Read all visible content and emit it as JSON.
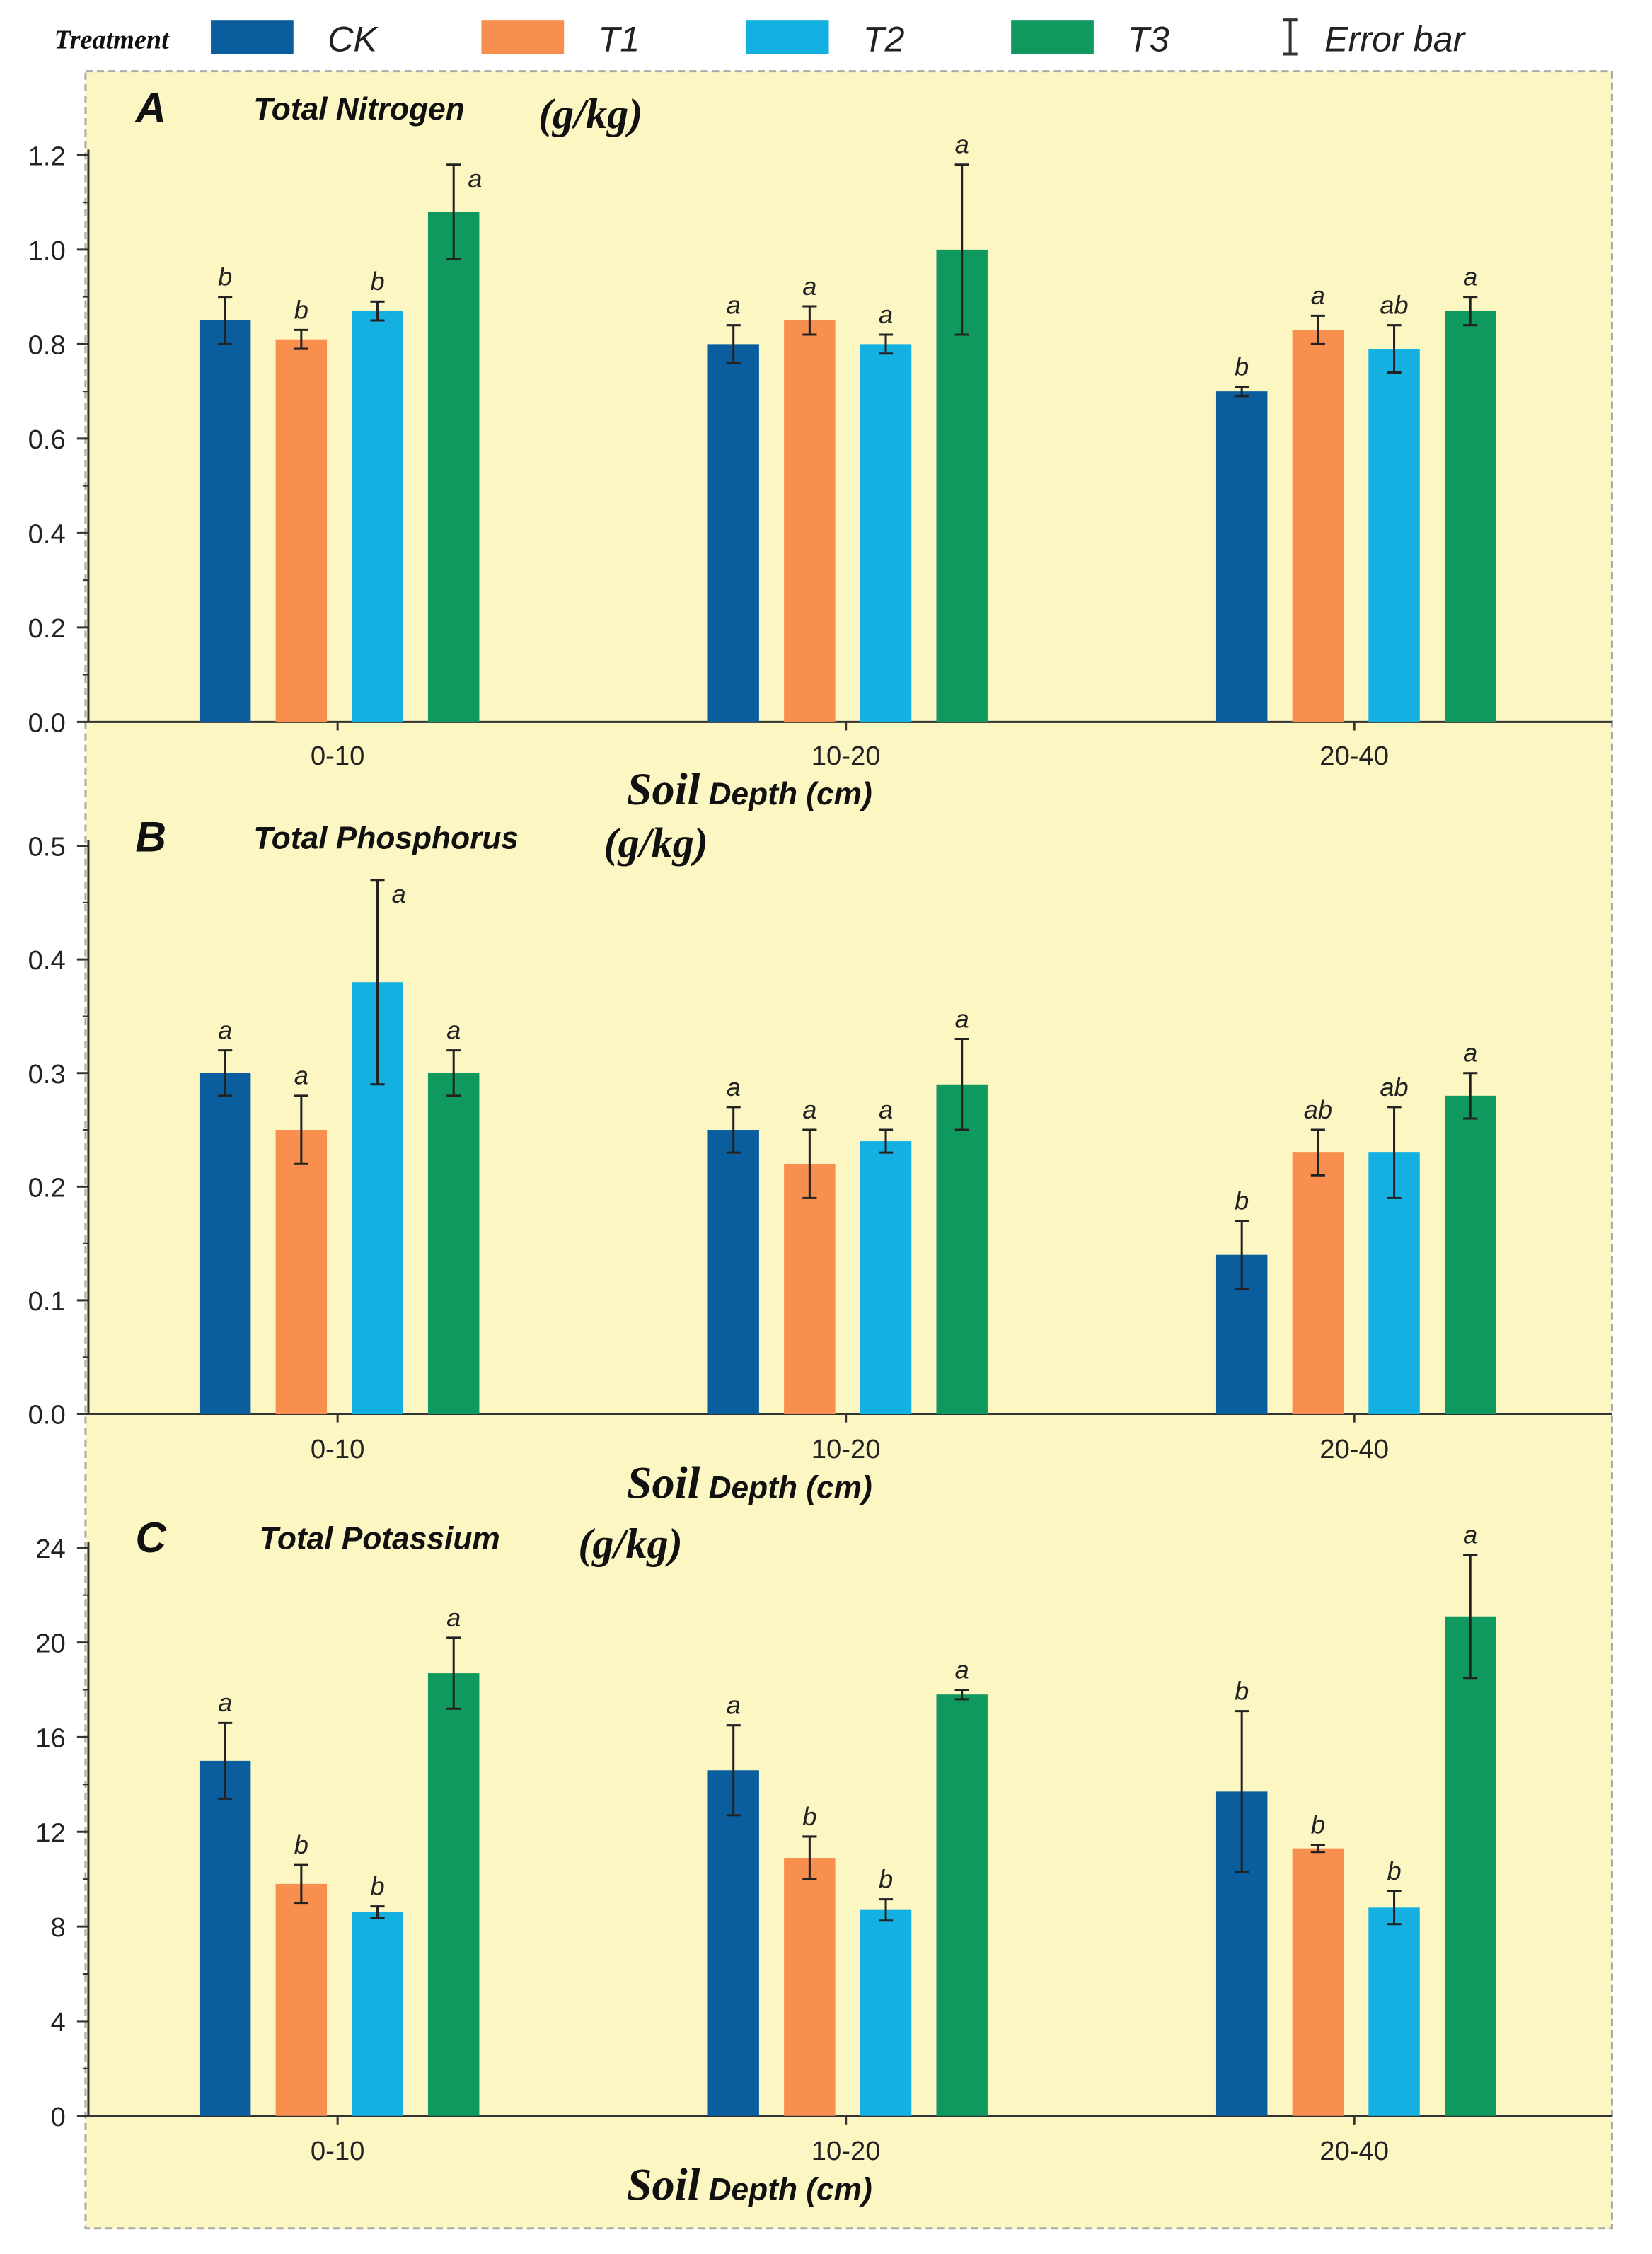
{
  "legend": {
    "title": "Treatment",
    "items": [
      {
        "label": "CK",
        "color": "#0b5e9d"
      },
      {
        "label": "T1",
        "color": "#f88f4e"
      },
      {
        "label": "T2",
        "color": "#14b0e2"
      },
      {
        "label": "T3",
        "color": "#10995f"
      }
    ],
    "error_label": "Error bar"
  },
  "background_color": "#fcf6c2",
  "chart_data": [
    {
      "type": "bar",
      "panel": "A",
      "title": "Total Nitrogen",
      "unit": "(g/kg)",
      "xlabel_main": "Soil",
      "xlabel_rest": "Depth (cm)",
      "categories": [
        "0-10",
        "10-20",
        "20-40"
      ],
      "ylim": [
        0,
        1.2
      ],
      "yticks": [
        "0.0",
        "0.2",
        "0.4",
        "0.6",
        "0.8",
        "1.0",
        "1.2"
      ],
      "ytick_values": [
        0,
        0.2,
        0.4,
        0.6,
        0.8,
        1.0,
        1.2
      ],
      "series": [
        {
          "name": "CK",
          "values": [
            0.85,
            0.8,
            0.7
          ],
          "errors": [
            0.05,
            0.04,
            0.01
          ],
          "letters": [
            "b",
            "a",
            "b"
          ]
        },
        {
          "name": "T1",
          "values": [
            0.81,
            0.85,
            0.83
          ],
          "errors": [
            0.02,
            0.03,
            0.03
          ],
          "letters": [
            "b",
            "a",
            "a"
          ]
        },
        {
          "name": "T2",
          "values": [
            0.87,
            0.8,
            0.79
          ],
          "errors": [
            0.02,
            0.02,
            0.05
          ],
          "letters": [
            "b",
            "a",
            "ab"
          ]
        },
        {
          "name": "T3",
          "values": [
            1.08,
            1.0,
            0.87
          ],
          "errors": [
            0.1,
            0.18,
            0.03
          ],
          "letters": [
            "a",
            "a",
            "a"
          ]
        }
      ]
    },
    {
      "type": "bar",
      "panel": "B",
      "title": "Total Phosphorus",
      "unit": "(g/kg)",
      "xlabel_main": "Soil",
      "xlabel_rest": "Depth (cm)",
      "categories": [
        "0-10",
        "10-20",
        "20-40"
      ],
      "ylim": [
        0,
        0.5
      ],
      "yticks": [
        "0.0",
        "0.1",
        "0.2",
        "0.3",
        "0.4",
        "0.5"
      ],
      "ytick_values": [
        0,
        0.1,
        0.2,
        0.3,
        0.4,
        0.5
      ],
      "series": [
        {
          "name": "CK",
          "values": [
            0.3,
            0.25,
            0.14
          ],
          "errors": [
            0.02,
            0.02,
            0.03
          ],
          "letters": [
            "a",
            "a",
            "b"
          ]
        },
        {
          "name": "T1",
          "values": [
            0.25,
            0.22,
            0.23
          ],
          "errors": [
            0.03,
            0.03,
            0.02
          ],
          "letters": [
            "a",
            "a",
            "ab"
          ]
        },
        {
          "name": "T2",
          "values": [
            0.38,
            0.24,
            0.23
          ],
          "errors": [
            0.09,
            0.01,
            0.04
          ],
          "letters": [
            "a",
            "a",
            "ab"
          ]
        },
        {
          "name": "T3",
          "values": [
            0.3,
            0.29,
            0.28
          ],
          "errors": [
            0.02,
            0.04,
            0.02
          ],
          "letters": [
            "a",
            "a",
            "a"
          ]
        }
      ]
    },
    {
      "type": "bar",
      "panel": "C",
      "title": "Total Potassium",
      "unit": "(g/kg)",
      "xlabel_main": "Soil",
      "xlabel_rest": "Depth (cm)",
      "categories": [
        "0-10",
        "10-20",
        "20-40"
      ],
      "ylim": [
        0,
        24
      ],
      "yticks": [
        "0",
        "4",
        "8",
        "12",
        "16",
        "20",
        "24"
      ],
      "ytick_values": [
        0,
        4,
        8,
        12,
        16,
        20,
        24
      ],
      "series": [
        {
          "name": "CK",
          "values": [
            15.0,
            14.6,
            13.7
          ],
          "errors": [
            1.6,
            1.9,
            3.4
          ],
          "letters": [
            "a",
            "a",
            "b"
          ]
        },
        {
          "name": "T1",
          "values": [
            9.8,
            10.9,
            11.3
          ],
          "errors": [
            0.8,
            0.9,
            0.15
          ],
          "letters": [
            "b",
            "b",
            "b"
          ]
        },
        {
          "name": "T2",
          "values": [
            8.6,
            8.7,
            8.8
          ],
          "errors": [
            0.25,
            0.45,
            0.7
          ],
          "letters": [
            "b",
            "b",
            "b"
          ]
        },
        {
          "name": "T3",
          "values": [
            18.7,
            17.8,
            21.1
          ],
          "errors": [
            1.5,
            0.2,
            2.6
          ],
          "letters": [
            "a",
            "a",
            "a"
          ]
        }
      ]
    }
  ]
}
